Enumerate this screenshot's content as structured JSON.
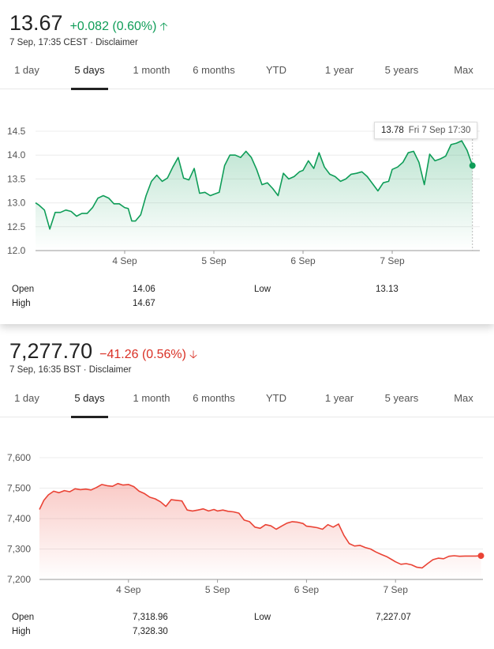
{
  "panels": [
    {
      "price": "13.67",
      "change": "+0.082 (0.60%)",
      "direction": "up",
      "subline": "7 Sep, 17:35 CEST · Disclaimer",
      "tabs": [
        "1 day",
        "5 days",
        "1 month",
        "6 months",
        "YTD",
        "1 year",
        "5 years",
        "Max"
      ],
      "active_tab": "5 days",
      "tooltip": {
        "value": "13.78",
        "date": "Fri 7 Sep 17:30"
      },
      "stats": {
        "open_label": "Open",
        "open_value": "14.06",
        "high_label": "High",
        "high_value": "14.67",
        "low_label": "Low",
        "low_value": "13.13"
      }
    },
    {
      "price": "7,277.70",
      "change": "−41.26 (0.56%)",
      "direction": "down",
      "subline": "7 Sep, 16:35 BST · Disclaimer",
      "tabs": [
        "1 day",
        "5 days",
        "1 month",
        "6 months",
        "YTD",
        "1 year",
        "5 years",
        "Max"
      ],
      "active_tab": "5 days",
      "stats": {
        "open_label": "Open",
        "open_value": "7,318.96",
        "high_label": "High",
        "high_value": "7,328.30",
        "low_label": "Low",
        "low_value": "7,227.07"
      }
    }
  ],
  "chart_data": [
    {
      "type": "area",
      "color": "#0f9d58",
      "ylim": [
        12.0,
        14.5
      ],
      "yticks": [
        "12.0",
        "12.5",
        "13.0",
        "13.5",
        "14.0",
        "14.5"
      ],
      "xtick_labels": [
        "4 Sep",
        "5 Sep",
        "6 Sep",
        "7 Sep"
      ],
      "xtick_positions": [
        1,
        2,
        3,
        4
      ],
      "xlim": [
        0,
        5
      ],
      "x": [
        0,
        0.04,
        0.1,
        0.16,
        0.22,
        0.28,
        0.34,
        0.4,
        0.46,
        0.52,
        0.58,
        0.64,
        0.7,
        0.76,
        0.82,
        0.88,
        0.94,
        1.0,
        1.04,
        1.08,
        1.12,
        1.18,
        1.24,
        1.3,
        1.36,
        1.42,
        1.48,
        1.54,
        1.6,
        1.66,
        1.72,
        1.78,
        1.84,
        1.9,
        1.96,
        2.0,
        2.06,
        2.12,
        2.18,
        2.24,
        2.3,
        2.36,
        2.42,
        2.48,
        2.54,
        2.6,
        2.66,
        2.72,
        2.78,
        2.84,
        2.9,
        2.96,
        3.0,
        3.06,
        3.12,
        3.18,
        3.24,
        3.3,
        3.36,
        3.42,
        3.48,
        3.54,
        3.6,
        3.66,
        3.72,
        3.78,
        3.84,
        3.9,
        3.96,
        4.0,
        4.06,
        4.12,
        4.18,
        4.24,
        4.3,
        4.36,
        4.42,
        4.48,
        4.54,
        4.6,
        4.66,
        4.72,
        4.78,
        4.84,
        4.9
      ],
      "values": [
        13.0,
        12.95,
        12.85,
        12.45,
        12.8,
        12.8,
        12.85,
        12.82,
        12.72,
        12.78,
        12.78,
        12.9,
        13.1,
        13.15,
        13.1,
        12.98,
        12.98,
        12.9,
        12.88,
        12.62,
        12.62,
        12.75,
        13.15,
        13.45,
        13.58,
        13.45,
        13.52,
        13.75,
        13.95,
        13.52,
        13.48,
        13.72,
        13.2,
        13.22,
        13.15,
        13.18,
        13.22,
        13.78,
        14.0,
        14.0,
        13.95,
        14.08,
        13.95,
        13.7,
        13.38,
        13.42,
        13.3,
        13.15,
        13.62,
        13.5,
        13.55,
        13.65,
        13.68,
        13.88,
        13.72,
        14.05,
        13.75,
        13.6,
        13.55,
        13.45,
        13.5,
        13.6,
        13.62,
        13.65,
        13.55,
        13.4,
        13.25,
        13.42,
        13.45,
        13.7,
        13.75,
        13.85,
        14.05,
        14.08,
        13.85,
        13.38,
        14.02,
        13.88,
        13.92,
        13.98,
        14.22,
        14.25,
        14.3,
        14.1,
        13.78
      ]
    },
    {
      "type": "area",
      "color": "#ea4335",
      "ylim": [
        7200,
        7600
      ],
      "yticks": [
        "7,200",
        "7,300",
        "7,400",
        "7,500",
        "7,600"
      ],
      "xtick_labels": [
        "4 Sep",
        "5 Sep",
        "6 Sep",
        "7 Sep"
      ],
      "xtick_positions": [
        1,
        2,
        3,
        4
      ],
      "xlim": [
        0,
        5
      ],
      "x": [
        0,
        0.05,
        0.1,
        0.16,
        0.22,
        0.28,
        0.34,
        0.4,
        0.46,
        0.52,
        0.58,
        0.64,
        0.7,
        0.76,
        0.82,
        0.88,
        0.94,
        1.0,
        1.06,
        1.12,
        1.18,
        1.24,
        1.3,
        1.36,
        1.42,
        1.48,
        1.54,
        1.6,
        1.66,
        1.72,
        1.78,
        1.84,
        1.9,
        1.96,
        2.0,
        2.06,
        2.12,
        2.18,
        2.24,
        2.3,
        2.36,
        2.42,
        2.48,
        2.54,
        2.6,
        2.66,
        2.72,
        2.78,
        2.84,
        2.9,
        2.96,
        3.0,
        3.06,
        3.12,
        3.18,
        3.24,
        3.3,
        3.36,
        3.42,
        3.48,
        3.54,
        3.6,
        3.66,
        3.72,
        3.78,
        3.84,
        3.9,
        3.96,
        4.0,
        4.06,
        4.12,
        4.18,
        4.24,
        4.3,
        4.36,
        4.42,
        4.48,
        4.54,
        4.6,
        4.66,
        4.72,
        4.78,
        4.84,
        4.9,
        4.96
      ],
      "values": [
        7430,
        7460,
        7478,
        7490,
        7485,
        7492,
        7488,
        7498,
        7495,
        7497,
        7494,
        7502,
        7512,
        7508,
        7506,
        7515,
        7510,
        7512,
        7505,
        7490,
        7482,
        7470,
        7465,
        7455,
        7440,
        7462,
        7460,
        7458,
        7428,
        7425,
        7428,
        7432,
        7425,
        7430,
        7425,
        7428,
        7424,
        7422,
        7418,
        7395,
        7390,
        7372,
        7368,
        7380,
        7376,
        7365,
        7375,
        7385,
        7390,
        7388,
        7384,
        7375,
        7373,
        7370,
        7365,
        7380,
        7372,
        7382,
        7345,
        7318,
        7310,
        7312,
        7305,
        7300,
        7290,
        7282,
        7275,
        7265,
        7258,
        7250,
        7252,
        7248,
        7240,
        7238,
        7252,
        7265,
        7270,
        7268,
        7276,
        7278,
        7276,
        7277,
        7277,
        7277,
        7277.7
      ]
    }
  ]
}
